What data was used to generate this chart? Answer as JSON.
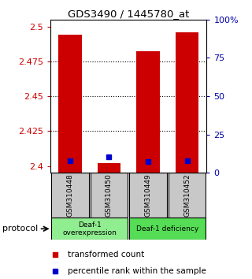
{
  "title": "GDS3490 / 1445780_at",
  "samples": [
    "GSM310448",
    "GSM310450",
    "GSM310449",
    "GSM310452"
  ],
  "transformed_counts": [
    2.494,
    2.402,
    2.482,
    2.496
  ],
  "percentile_values": [
    8.0,
    10.5,
    7.5,
    8.0
  ],
  "ylim_left": [
    2.395,
    2.505
  ],
  "ylim_right": [
    0,
    100
  ],
  "left_ticks": [
    2.4,
    2.425,
    2.45,
    2.475,
    2.5
  ],
  "right_ticks": [
    0,
    25,
    50,
    75,
    100
  ],
  "right_tick_labels": [
    "0",
    "25",
    "50",
    "75",
    "100%"
  ],
  "groups": [
    {
      "label": "Deaf-1\noverexpression",
      "samples": [
        0,
        1
      ],
      "color": "#90EE90"
    },
    {
      "label": "Deaf-1 deficiency",
      "samples": [
        2,
        3
      ],
      "color": "#55DD55"
    }
  ],
  "bar_color": "#CC0000",
  "bar_width": 0.6,
  "percentile_color": "#0000CC",
  "plot_bg_color": "#ffffff",
  "left_tick_color": "#CC0000",
  "right_tick_color": "#0000AA",
  "sample_box_color": "#C8C8C8",
  "protocol_label": "protocol",
  "legend_red_label": "transformed count",
  "legend_blue_label": "percentile rank within the sample",
  "grid_dotted_ticks": [
    2.425,
    2.45,
    2.475
  ]
}
